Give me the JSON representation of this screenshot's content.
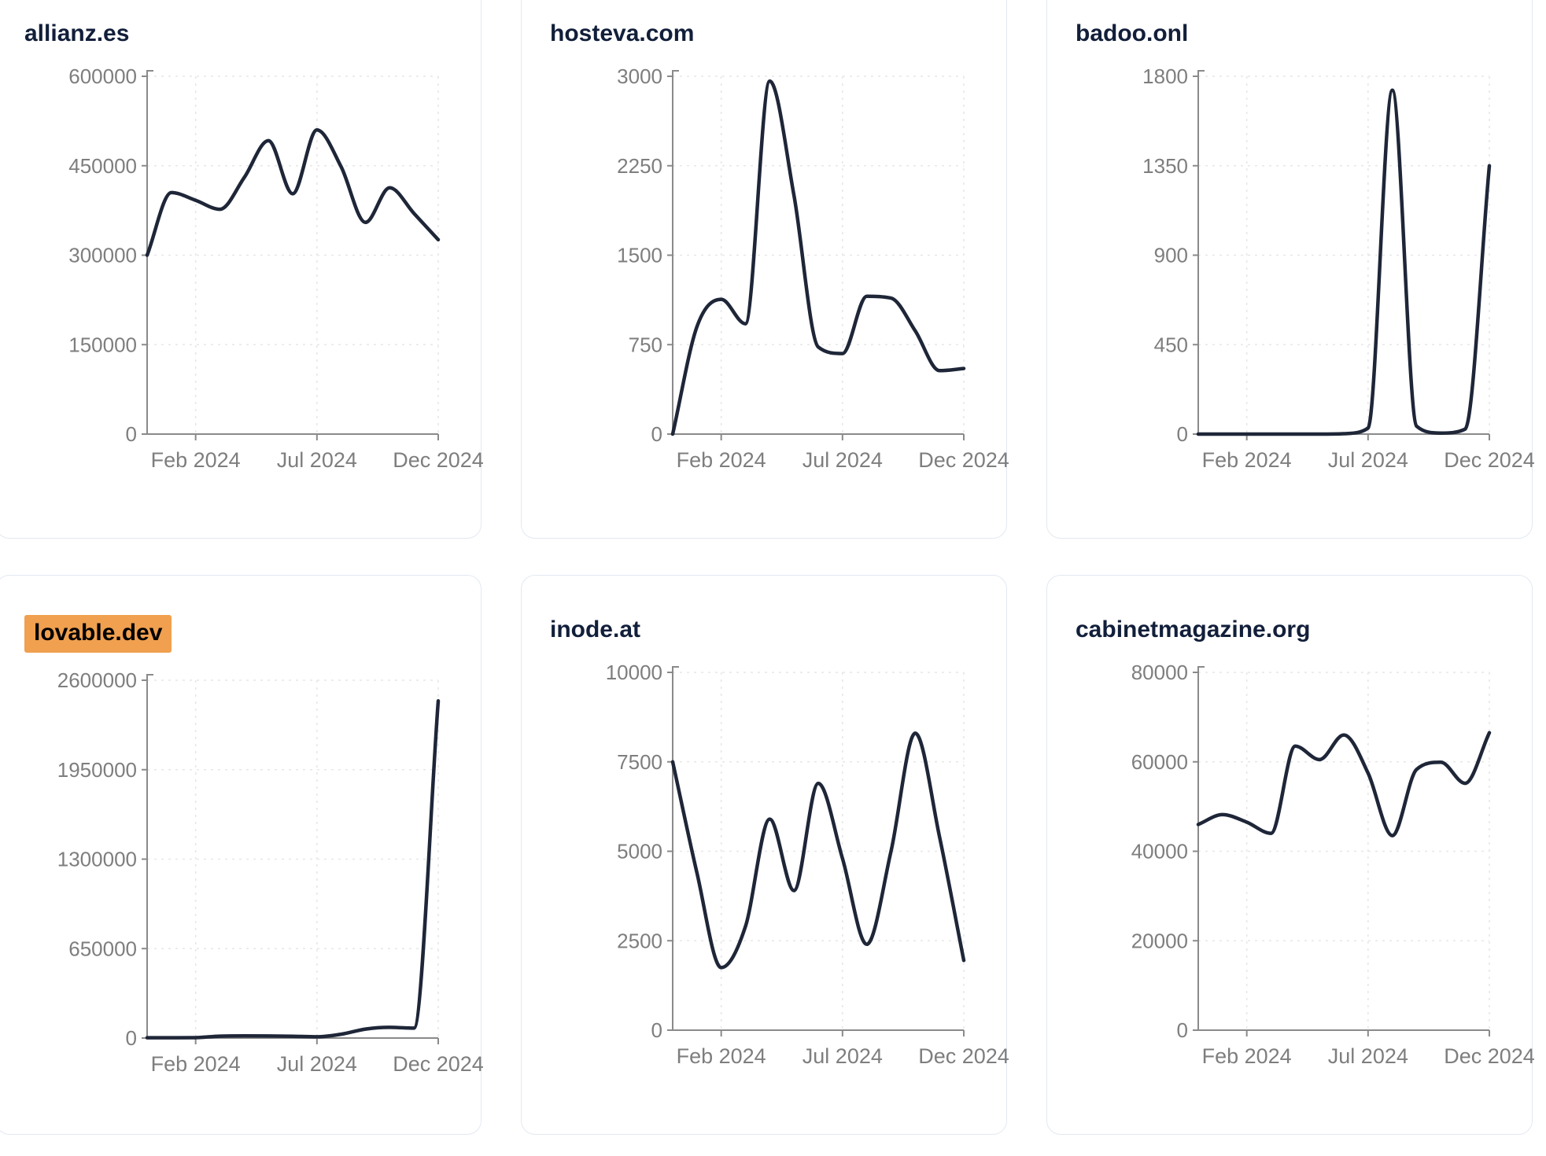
{
  "style": {
    "line_color": "#1e2638",
    "title_color": "#121f3a",
    "highlight_color": "#f0a04f",
    "highlight_text_color": "#000000",
    "axis_color": "#8a8a8a",
    "tick_label_color": "#7e7e7e",
    "grid_color": "#e7e7e7",
    "card_border_color": "#e3e9f1",
    "card_background": "#ffffff",
    "page_background": "#ffffff"
  },
  "chart_data": [
    {
      "type": "line",
      "title": "allianz.es",
      "highlighted": false,
      "x": [
        "Dec 2023",
        "Jan 2024",
        "Feb 2024",
        "Mar 2024",
        "Apr 2024",
        "May 2024",
        "Jun 2024",
        "Jul 2024",
        "Aug 2024",
        "Sep 2024",
        "Oct 2024",
        "Nov 2024",
        "Dec 2024"
      ],
      "values": [
        300000,
        405000,
        392000,
        377000,
        430000,
        492000,
        403000,
        510000,
        448000,
        355000,
        413000,
        370000,
        326000
      ],
      "y_ticks": [
        0,
        150000,
        300000,
        450000,
        600000
      ],
      "ylim": [
        0,
        600000
      ],
      "x_tick_labels": [
        "Feb 2024",
        "Jul 2024",
        "Dec 2024"
      ],
      "grid": true,
      "legend": "none"
    },
    {
      "type": "line",
      "title": "hosteva.com",
      "highlighted": false,
      "x": [
        "Dec 2023",
        "Jan 2024",
        "Feb 2024",
        "Mar 2024",
        "Apr 2024",
        "May 2024",
        "Jun 2024",
        "Jul 2024",
        "Aug 2024",
        "Sep 2024",
        "Oct 2024",
        "Nov 2024",
        "Dec 2024"
      ],
      "values": [
        0,
        900,
        1130,
        925,
        2960,
        2000,
        730,
        675,
        1155,
        1140,
        865,
        532,
        550
      ],
      "y_ticks": [
        0,
        750,
        1500,
        2250,
        3000
      ],
      "ylim": [
        0,
        3000
      ],
      "x_tick_labels": [
        "Feb 2024",
        "Jul 2024",
        "Dec 2024"
      ],
      "grid": true,
      "legend": "none"
    },
    {
      "type": "line",
      "title": "badoo.onl",
      "highlighted": false,
      "x": [
        "Dec 2023",
        "Jan 2024",
        "Feb 2024",
        "Mar 2024",
        "Apr 2024",
        "May 2024",
        "Jun 2024",
        "Jul 2024",
        "Aug 2024",
        "Sep 2024",
        "Oct 2024",
        "Nov 2024",
        "Dec 2024"
      ],
      "values": [
        0,
        0,
        0,
        0,
        0,
        0,
        2,
        30,
        1730,
        40,
        5,
        25,
        1350
      ],
      "y_ticks": [
        0,
        450,
        900,
        1350,
        1800
      ],
      "ylim": [
        0,
        1800
      ],
      "x_tick_labels": [
        "Feb 2024",
        "Jul 2024",
        "Dec 2024"
      ],
      "grid": true,
      "legend": "none"
    },
    {
      "type": "line",
      "title": "lovable.dev",
      "highlighted": true,
      "x": [
        "Dec 2023",
        "Jan 2024",
        "Feb 2024",
        "Mar 2024",
        "Apr 2024",
        "May 2024",
        "Jun 2024",
        "Jul 2024",
        "Aug 2024",
        "Sep 2024",
        "Oct 2024",
        "Nov 2024",
        "Dec 2024"
      ],
      "values": [
        2000,
        2000,
        3000,
        14000,
        16000,
        15000,
        13000,
        9000,
        28000,
        65000,
        78000,
        72000,
        2450000
      ],
      "y_ticks": [
        0,
        650000,
        1300000,
        1950000,
        2600000
      ],
      "ylim": [
        0,
        2600000
      ],
      "x_tick_labels": [
        "Feb 2024",
        "Jul 2024",
        "Dec 2024"
      ],
      "grid": true,
      "legend": "none"
    },
    {
      "type": "line",
      "title": "inode.at",
      "highlighted": false,
      "x": [
        "Dec 2023",
        "Jan 2024",
        "Feb 2024",
        "Mar 2024",
        "Apr 2024",
        "May 2024",
        "Jun 2024",
        "Jul 2024",
        "Aug 2024",
        "Sep 2024",
        "Oct 2024",
        "Nov 2024",
        "Dec 2024"
      ],
      "values": [
        7500,
        4400,
        1750,
        2900,
        5900,
        3900,
        6900,
        4800,
        2400,
        5000,
        8300,
        5400,
        1950
      ],
      "y_ticks": [
        0,
        2500,
        5000,
        7500,
        10000
      ],
      "ylim": [
        0,
        10000
      ],
      "x_tick_labels": [
        "Feb 2024",
        "Jul 2024",
        "Dec 2024"
      ],
      "grid": true,
      "legend": "none"
    },
    {
      "type": "line",
      "title": "cabinetmagazine.org",
      "highlighted": false,
      "x": [
        "Dec 2023",
        "Jan 2024",
        "Feb 2024",
        "Mar 2024",
        "Apr 2024",
        "May 2024",
        "Jun 2024",
        "Jul 2024",
        "Aug 2024",
        "Sep 2024",
        "Oct 2024",
        "Nov 2024",
        "Dec 2024"
      ],
      "values": [
        46000,
        48200,
        46500,
        44000,
        63500,
        60500,
        66000,
        57500,
        43500,
        58300,
        59900,
        55200,
        66500
      ],
      "y_ticks": [
        0,
        20000,
        40000,
        60000,
        80000
      ],
      "ylim": [
        0,
        80000
      ],
      "x_tick_labels": [
        "Feb 2024",
        "Jul 2024",
        "Dec 2024"
      ],
      "grid": true,
      "legend": "none"
    }
  ]
}
